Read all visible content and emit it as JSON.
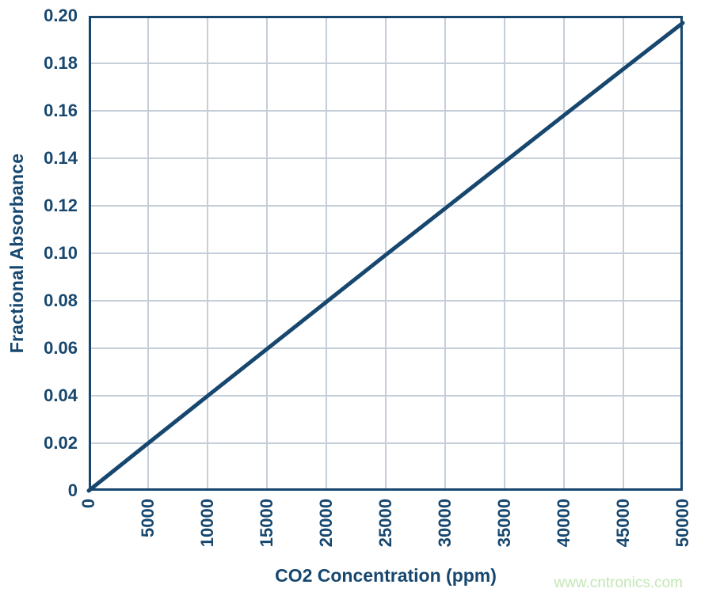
{
  "watermark": {
    "text": "www.cntronics.com",
    "color": "#c3e7b4"
  },
  "chart_data": {
    "type": "line",
    "title": "",
    "xlabel": "CO2 Concentration (ppm)",
    "ylabel": "Fractional Absorbance",
    "x": [
      0,
      5000,
      10000,
      15000,
      20000,
      25000,
      30000,
      35000,
      40000,
      45000,
      50000
    ],
    "y": [
      0,
      0.02,
      0.0399,
      0.0597,
      0.0795,
      0.0993,
      0.1189,
      0.1385,
      0.1581,
      0.1776,
      0.197
    ],
    "xlim": [
      0,
      50000
    ],
    "ylim": [
      0,
      0.2
    ],
    "x_tick_labels": [
      "0",
      "5000",
      "10000",
      "15000",
      "20000",
      "25000",
      "30000",
      "35000",
      "40000",
      "45000",
      "50000"
    ],
    "y_tick_labels": [
      "0",
      "0.02",
      "0.04",
      "0.06",
      "0.08",
      "0.10",
      "0.12",
      "0.14",
      "0.16",
      "0.18",
      "0.20"
    ],
    "grid": true,
    "legend": false,
    "colors": {
      "line": "#17476e",
      "frame": "#17476e",
      "grid": "#c5ced9",
      "text": "#17476e"
    }
  }
}
